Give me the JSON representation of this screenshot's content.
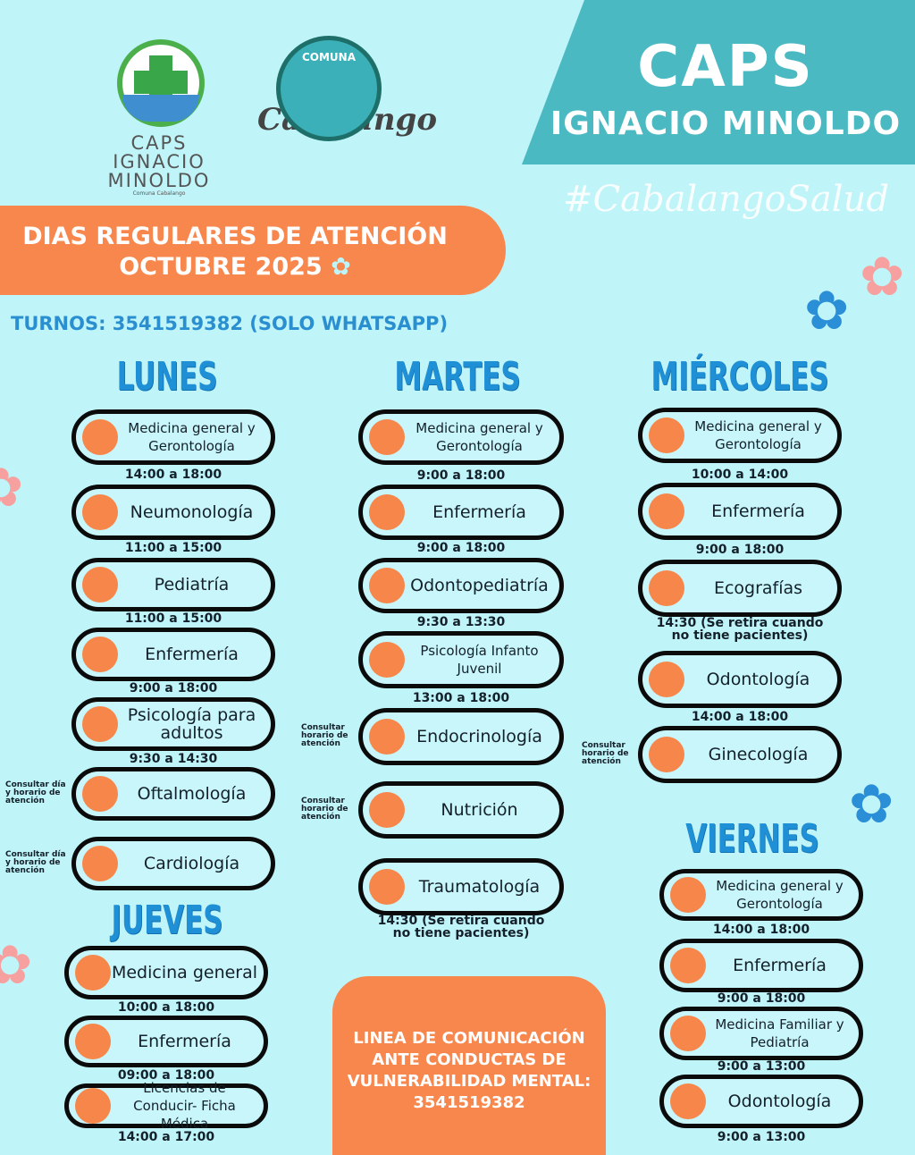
{
  "header": {
    "title": "CAPS",
    "subtitle": "IGNACIO MINOLDO",
    "hashtag": "#CabalangoSalud"
  },
  "logos": {
    "caps": {
      "line1": "CAPS",
      "line2": "IGNACIO",
      "line3": "MINOLDO",
      "small": "Comuna Cabalango"
    },
    "comuna": {
      "top": "COMUNA",
      "name": "Cabalango"
    }
  },
  "banner": {
    "line1": "DIAS REGULARES DE ATENCIÓN",
    "line2": "OCTUBRE 2025"
  },
  "turnos": "TURNOS: 3541519382 (SOLO WHATSAPP)",
  "colors": {
    "background": "#bff4f8",
    "accent": "#f7874d",
    "teal": "#4bb9c2",
    "day_title": "#1f8fd6"
  },
  "days": [
    {
      "name": "LUNES",
      "services": [
        {
          "label": "Medicina general y Gerontología",
          "time": "14:00 a 18:00"
        },
        {
          "label": "Neumonología",
          "time": "11:00 a 15:00"
        },
        {
          "label": "Pediatría",
          "time": "11:00 a 15:00"
        },
        {
          "label": "Enfermería",
          "time": "9:00 a 18:00"
        },
        {
          "label": "Psicología para adultos",
          "time": "9:30 a 14:30"
        },
        {
          "label": "Oftalmología",
          "note": "Consultar día y horario de atención"
        },
        {
          "label": "Cardiología",
          "note": "Consultar día y horario de atención"
        }
      ]
    },
    {
      "name": "MARTES",
      "services": [
        {
          "label": "Medicina general y Gerontología",
          "time": "9:00 a 18:00"
        },
        {
          "label": "Enfermería",
          "time": "9:00 a 18:00"
        },
        {
          "label": "Odontopediatría",
          "time": "9:30 a 13:30"
        },
        {
          "label": "Psicología Infanto Juvenil",
          "time": "13:00 a 18:00"
        },
        {
          "label": "Endocrinología",
          "note": "Consultar horario de atención"
        },
        {
          "label": "Nutrición",
          "note": "Consultar horario de atención"
        },
        {
          "label": "Traumatología",
          "time": "14:30 (Se retira cuando no tiene pacientes)"
        }
      ]
    },
    {
      "name": "MIÉRCOLES",
      "services": [
        {
          "label": "Medicina general y Gerontología",
          "time": "10:00 a 14:00"
        },
        {
          "label": "Enfermería",
          "time": "9:00 a 18:00"
        },
        {
          "label": "Ecografías",
          "time": "14:30 (Se retira cuando no tiene pacientes)"
        },
        {
          "label": "Odontología",
          "time": "14:00 a 18:00"
        },
        {
          "label": "Ginecología",
          "note": "Consultar horario de atención"
        }
      ]
    },
    {
      "name": "JUEVES",
      "services": [
        {
          "label": "Medicina general",
          "time": "10:00 a 18:00"
        },
        {
          "label": "Enfermería",
          "time": "09:00 a 18:00"
        },
        {
          "label": "Licencias de Conducir- Ficha Médica",
          "time": "14:00 a 17:00"
        }
      ]
    },
    {
      "name": "VIERNES",
      "services": [
        {
          "label": "Medicina general y Gerontología",
          "time": "14:00 a 18:00"
        },
        {
          "label": "Enfermería",
          "time": "9:00 a 18:00"
        },
        {
          "label": "Medicina Familiar y Pediatría",
          "time": "9:00 a 13:00"
        },
        {
          "label": "Odontología",
          "time": "9:00 a 13:00"
        }
      ]
    }
  ],
  "mental_health": "LINEA DE COMUNICACIÓN ANTE CONDUCTAS DE VULNERABILIDAD MENTAL: 3541519382"
}
